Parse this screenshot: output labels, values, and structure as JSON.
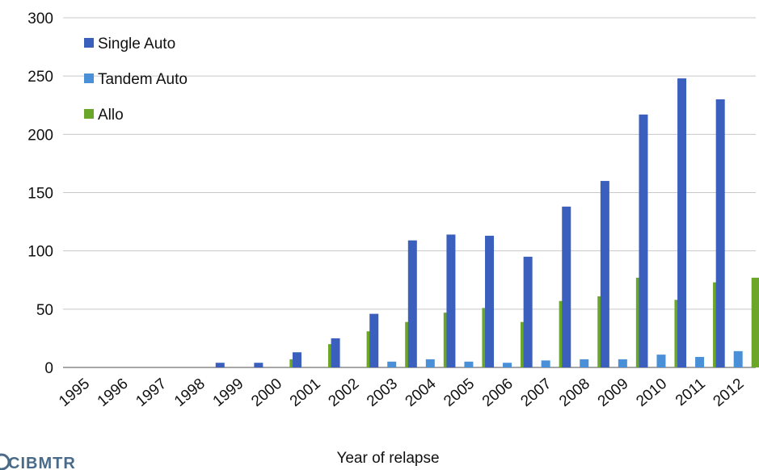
{
  "chart_data": {
    "type": "bar",
    "xlabel": "Year of relapse",
    "ylabel": "",
    "ylim": [
      0,
      300
    ],
    "yticks": [
      0,
      50,
      100,
      150,
      200,
      250,
      300
    ],
    "grid": true,
    "legend_position": "top-left",
    "categories": [
      "1995",
      "1996",
      "1997",
      "1998",
      "1999",
      "2000",
      "2001",
      "2002",
      "2003",
      "2004",
      "2005",
      "2006",
      "2007",
      "2008",
      "2009",
      "2010",
      "2011",
      "2012"
    ],
    "series": [
      {
        "name": "Single Auto",
        "color": "#3a5fbd",
        "values": [
          0,
          0,
          0,
          0,
          4,
          4,
          13,
          25,
          46,
          109,
          114,
          113,
          95,
          138,
          160,
          217,
          248,
          230
        ]
      },
      {
        "name": "Tandem Auto",
        "color": "#4a90d9",
        "values": [
          0,
          0,
          0,
          0,
          0,
          0,
          0,
          0,
          5,
          7,
          5,
          4,
          6,
          7,
          7,
          11,
          9,
          14
        ]
      },
      {
        "name": "Allo",
        "color": "#6aa628",
        "values": [
          0,
          0,
          0,
          0,
          0,
          7,
          20,
          31,
          39,
          47,
          51,
          39,
          57,
          61,
          77,
          58,
          73,
          77
        ]
      }
    ]
  },
  "logo": {
    "text": "CIBMTR"
  }
}
